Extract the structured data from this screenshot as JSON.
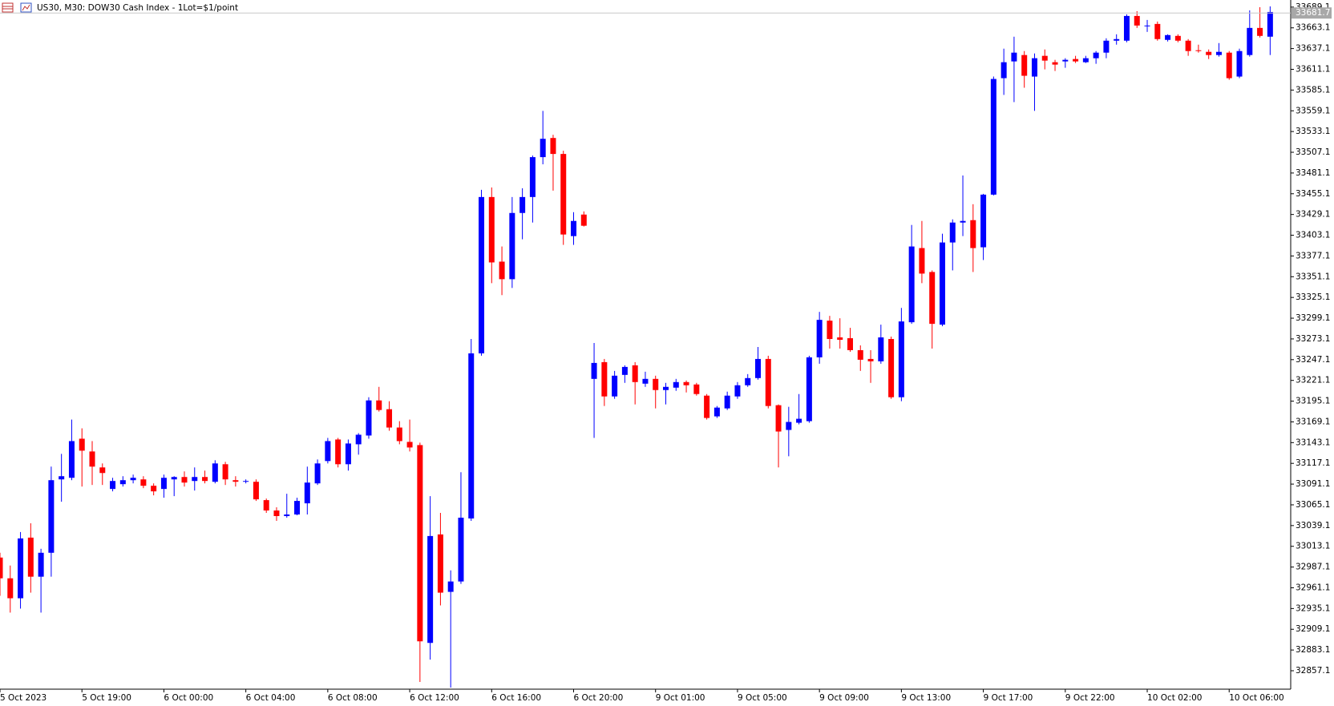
{
  "chart_data": {
    "type": "candlestick",
    "title": "US30, M30:  DOW30 Cash Index - 1Lot=$1/point",
    "up_color": "#0000ff",
    "down_color": "#ff0000",
    "current_price": 33681.7,
    "ylim": [
      32834,
      33698
    ],
    "yticks": [
      33689.1,
      33663.1,
      33637.1,
      33611.1,
      33585.1,
      33559.1,
      33533.1,
      33507.1,
      33481.1,
      33455.1,
      33429.1,
      33403.1,
      33377.1,
      33351.1,
      33325.1,
      33299.1,
      33273.1,
      33247.1,
      33221.1,
      33195.1,
      33169.1,
      33143.1,
      33117.1,
      33091.1,
      33065.1,
      33039.1,
      33013.1,
      32987.1,
      32961.1,
      32935.1,
      32909.1,
      32883.1,
      32857.1
    ],
    "categories": [
      "5 Oct 2023",
      null,
      null,
      null,
      null,
      null,
      null,
      null,
      "5 Oct 19:00",
      null,
      null,
      null,
      null,
      null,
      null,
      null,
      "6 Oct 00:00",
      null,
      null,
      null,
      null,
      null,
      null,
      null,
      "6 Oct 04:00",
      null,
      null,
      null,
      null,
      null,
      null,
      null,
      "6 Oct 08:00",
      null,
      null,
      null,
      null,
      null,
      null,
      null,
      "6 Oct 12:00",
      null,
      null,
      null,
      null,
      null,
      null,
      null,
      "6 Oct 16:00",
      null,
      null,
      null,
      null,
      null,
      null,
      null,
      "6 Oct 20:00",
      null,
      null,
      null,
      null,
      null,
      null,
      null,
      "9 Oct 01:00",
      null,
      null,
      null,
      null,
      null,
      null,
      null,
      "9 Oct 05:00",
      null,
      null,
      null,
      null,
      null,
      null,
      null,
      "9 Oct 09:00",
      null,
      null,
      null,
      null,
      null,
      null,
      null,
      "9 Oct 13:00",
      null,
      null,
      null,
      null,
      null,
      null,
      null,
      "9 Oct 17:00",
      null,
      null,
      null,
      null,
      null,
      null,
      null,
      "9 Oct 22:00",
      null,
      null,
      null,
      null,
      null,
      null,
      null,
      "10 Oct 02:00",
      null,
      null,
      null,
      null,
      null,
      null,
      null,
      "10 Oct 06:00",
      null,
      null,
      null,
      null
    ],
    "open": [
      32999,
      32973,
      32948,
      33024,
      32975,
      33005,
      33097,
      33099,
      33148,
      33132,
      33112,
      33085,
      33091,
      33096,
      33097,
      33089,
      33085,
      33097,
      33100,
      33095,
      33100,
      33094,
      33116,
      33096,
      33094,
      33094,
      33071,
      33058,
      33051,
      33053,
      33067,
      33092,
      33120,
      33147,
      33116,
      33141,
      33152,
      33196,
      33185,
      33162,
      33144,
      33140,
      32892,
      33028,
      32956,
      32969,
      33048,
      33255,
      33451,
      33370,
      33348,
      33431,
      33451,
      33501,
      33525,
      33505,
      33402,
      33429,
      33223,
      33244,
      33201,
      33228,
      33240,
      33217,
      33223,
      33209,
      33212,
      33219,
      33216,
      33202,
      33176,
      33186,
      33201,
      33215,
      33224,
      33248,
      33190,
      33159,
      33168,
      33170,
      33250,
      33296,
      33275,
      33274,
      33259,
      33248,
      33245,
      33273,
      33200,
      33294,
      33387,
      33357,
      33291,
      33394,
      33419,
      33422,
      33388,
      33454,
      33600,
      33621,
      33629,
      33602,
      33628,
      33620,
      33621,
      33624,
      33620,
      33625,
      33632,
      33647,
      33647,
      33678,
      33665,
      33668,
      33648,
      33653,
      33647,
      33635,
      33633,
      33629,
      33632,
      33602,
      33629,
      33663,
      33652
    ],
    "high": [
      33005,
      32989,
      33031,
      33042,
      33010,
      33113,
      33129,
      33172,
      33161,
      33145,
      33117,
      33099,
      33101,
      33103,
      33101,
      33092,
      33103,
      33101,
      33107,
      33112,
      33108,
      33121,
      33119,
      33101,
      33097,
      33097,
      33073,
      33062,
      33079,
      33074,
      33113,
      33122,
      33149,
      33149,
      33147,
      33155,
      33200,
      33213,
      33195,
      33170,
      33172,
      33143,
      33076,
      33055,
      32983,
      33106,
      33273,
      33460,
      33463,
      33389,
      33451,
      33462,
      33503,
      33559,
      33529,
      33509,
      33432,
      33433,
      33268,
      33248,
      33233,
      33240,
      33244,
      33232,
      33227,
      33218,
      33223,
      33221,
      33218,
      33204,
      33189,
      33207,
      33219,
      33229,
      33263,
      33252,
      33191,
      33188,
      33204,
      33252,
      33307,
      33302,
      33299,
      33287,
      33265,
      33259,
      33291,
      33276,
      33312,
      33416,
      33421,
      33359,
      33405,
      33423,
      33478,
      33442,
      33455,
      33602,
      33637,
      33652,
      33634,
      33631,
      33636,
      33623,
      33625,
      33628,
      33628,
      33634,
      33650,
      33655,
      33680,
      33684,
      33673,
      33671,
      33655,
      33655,
      33649,
      33642,
      33636,
      33644,
      33634,
      33637,
      33685,
      33689,
      33690
    ],
    "low": [
      32951,
      32930,
      32935,
      32955,
      32930,
      32975,
      33069,
      33096,
      33088,
      33090,
      33090,
      33082,
      33088,
      33092,
      33086,
      33077,
      33074,
      33076,
      33088,
      33083,
      33092,
      33092,
      33090,
      33088,
      33092,
      33070,
      33055,
      33045,
      33049,
      33052,
      33053,
      33090,
      33117,
      33112,
      33108,
      33128,
      33148,
      33182,
      33158,
      33141,
      33132,
      32843,
      32871,
      32939,
      32836,
      32966,
      33045,
      33252,
      33343,
      33328,
      33337,
      33398,
      33419,
      33492,
      33459,
      33391,
      33391,
      33414,
      33149,
      33189,
      33198,
      33218,
      33191,
      33213,
      33186,
      33191,
      33208,
      33206,
      33202,
      33172,
      33174,
      33184,
      33198,
      33213,
      33222,
      33186,
      33112,
      33126,
      33166,
      33168,
      33242,
      33261,
      33261,
      33257,
      33233,
      33218,
      33242,
      33198,
      33195,
      33292,
      33343,
      33261,
      33289,
      33359,
      33402,
      33357,
      33372,
      33453,
      33579,
      33570,
      33588,
      33559,
      33611,
      33609,
      33613,
      33619,
      33619,
      33618,
      33625,
      33642,
      33645,
      33663,
      33658,
      33647,
      33646,
      33645,
      33628,
      33632,
      33624,
      33627,
      33598,
      33600,
      33627,
      33651,
      33629
    ],
    "close": [
      32973,
      32948,
      33023,
      32975,
      33005,
      33096,
      33101,
      33145,
      33133,
      33113,
      33105,
      33095,
      33096,
      33099,
      33089,
      33082,
      33099,
      33100,
      33093,
      33100,
      33095,
      33117,
      33097,
      33094,
      33095,
      33072,
      33058,
      33051,
      33053,
      33070,
      33093,
      33117,
      33145,
      33116,
      33142,
      33153,
      33196,
      33184,
      33162,
      33145,
      33137,
      32894,
      33026,
      32955,
      32969,
      33049,
      33255,
      33451,
      33369,
      33348,
      33431,
      33451,
      33501,
      33524,
      33505,
      33404,
      33421,
      33415,
      33243,
      33201,
      33227,
      33238,
      33219,
      33223,
      33209,
      33213,
      33219,
      33215,
      33204,
      33174,
      33187,
      33202,
      33215,
      33224,
      33248,
      33189,
      33157,
      33169,
      33173,
      33250,
      33297,
      33273,
      33272,
      33259,
      33247,
      33245,
      33275,
      33200,
      33295,
      33389,
      33355,
      33292,
      33394,
      33419,
      33421,
      33387,
      33454,
      33599,
      33620,
      33632,
      33603,
      33625,
      33622,
      33617,
      33623,
      33621,
      33625,
      33632,
      33647,
      33649,
      33678,
      33666,
      33666,
      33649,
      33654,
      33647,
      33634,
      33634,
      33629,
      33633,
      33600,
      33634,
      33663,
      33653,
      33683
    ]
  }
}
